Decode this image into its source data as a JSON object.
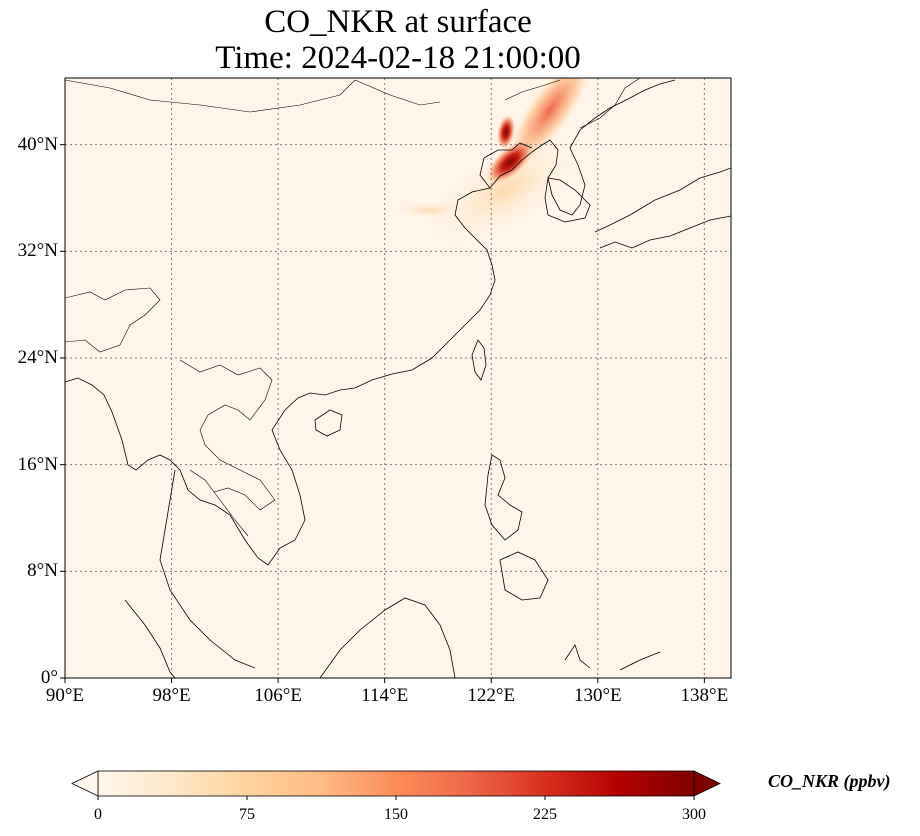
{
  "title": {
    "line1": "CO_NKR at surface",
    "line2": "Time: 2024-02-18 21:00:00"
  },
  "map": {
    "projection": "PlateCarree",
    "lon_range": [
      90,
      140
    ],
    "lat_range": [
      0,
      45
    ],
    "gridlines": true,
    "lon_ticks": [
      {
        "value": 90,
        "label": "90°E"
      },
      {
        "value": 98,
        "label": "98°E"
      },
      {
        "value": 106,
        "label": "106°E"
      },
      {
        "value": 114,
        "label": "114°E"
      },
      {
        "value": 122,
        "label": "122°E"
      },
      {
        "value": 130,
        "label": "130°E"
      },
      {
        "value": 138,
        "label": "138°E"
      }
    ],
    "lat_ticks": [
      {
        "value": 0,
        "label": "0°"
      },
      {
        "value": 8,
        "label": "8°N"
      },
      {
        "value": 16,
        "label": "16°N"
      },
      {
        "value": 24,
        "label": "24°N"
      },
      {
        "value": 32,
        "label": "32°N"
      },
      {
        "value": 40,
        "label": "40°N"
      }
    ],
    "background_color": "#fff5eb",
    "coast_color": "#000000"
  },
  "colorbar": {
    "colormap": "OrRd",
    "min": 0,
    "max": 300,
    "extend": "both",
    "ticks": [
      "0",
      "75",
      "150",
      "225",
      "300"
    ],
    "label": "CO_NKR (ppbv)",
    "colors": [
      "#fff7ec",
      "#fee8c8",
      "#fdd49e",
      "#fdbb84",
      "#fc8d59",
      "#ef6548",
      "#d7301f",
      "#b30000",
      "#7f0000"
    ]
  }
}
